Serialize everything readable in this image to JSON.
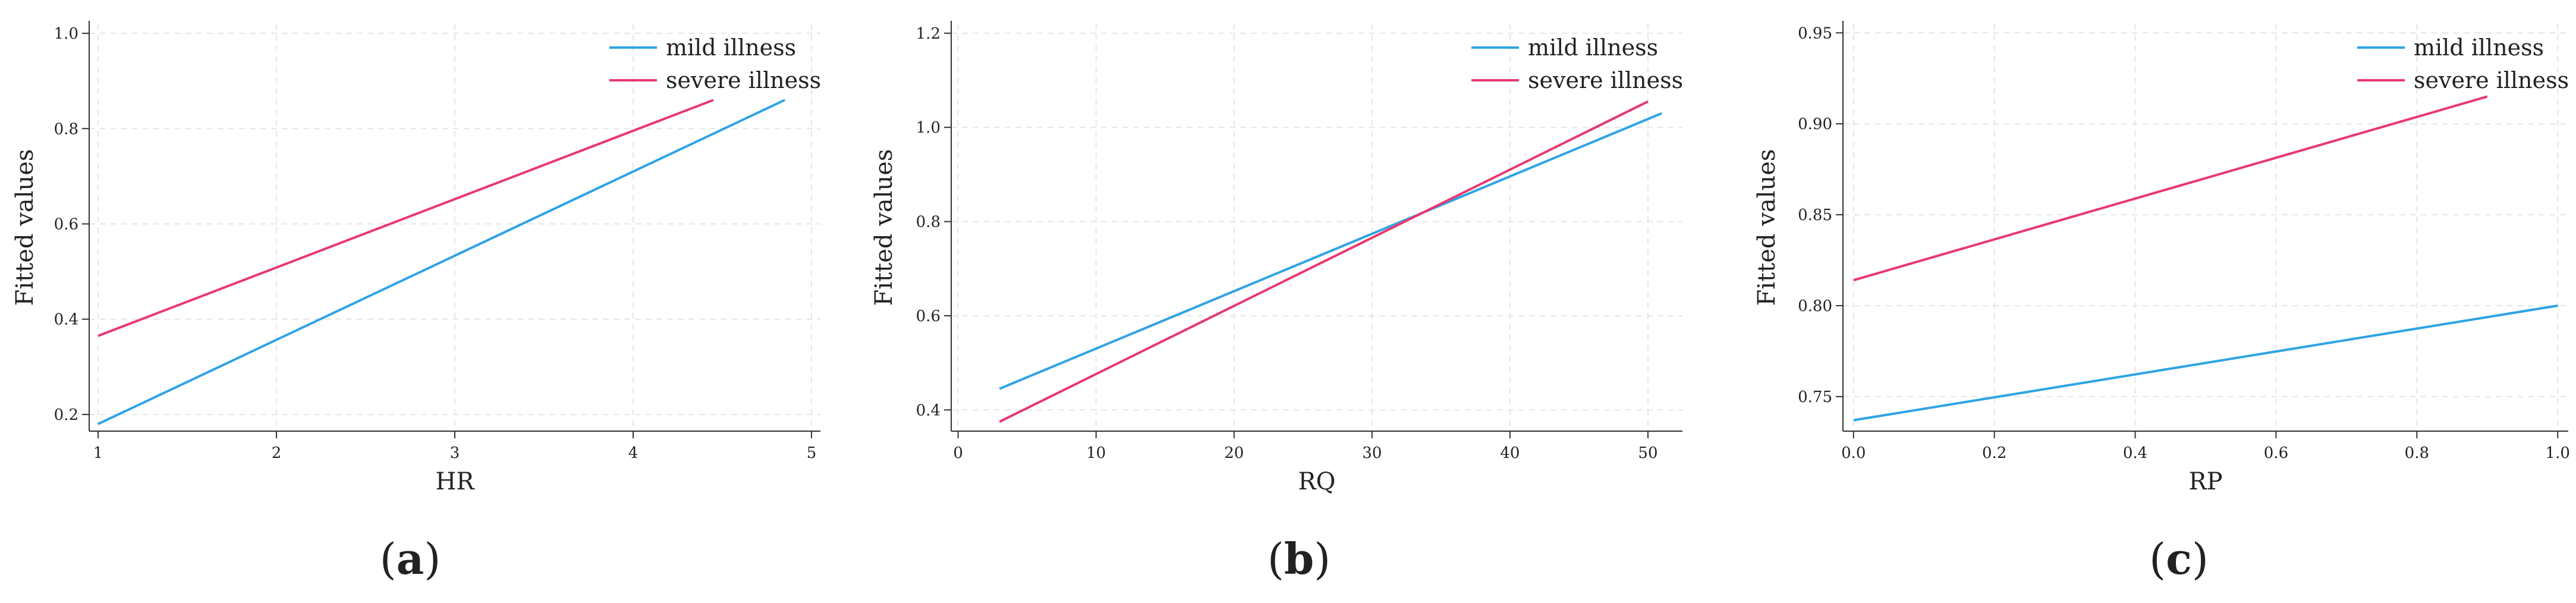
{
  "figure": {
    "panels": [
      {
        "caption": {
          "open": "(",
          "letter": "a",
          "close": ")"
        }
      },
      {
        "caption": {
          "open": "(",
          "letter": "b",
          "close": ")"
        }
      },
      {
        "caption": {
          "open": "(",
          "letter": "c",
          "close": ")"
        }
      }
    ]
  },
  "colors": {
    "mild": "#2ea3e6",
    "severe": "#e8386e",
    "axis": "#333333",
    "grid": "#e6e6e6"
  },
  "chart_data": [
    {
      "type": "line",
      "xlabel": "HR",
      "ylabel": "Fitted values",
      "xlim": [
        0.95,
        5.05
      ],
      "ylim": [
        0.165,
        1.02
      ],
      "xticks": [
        1,
        2,
        3,
        4,
        5
      ],
      "xtick_labels": [
        "1",
        "2",
        "3",
        "4",
        "5"
      ],
      "yticks": [
        0.2,
        0.4,
        0.6,
        0.8,
        1.0
      ],
      "ytick_labels": [
        "0.2",
        "0.4",
        "0.6",
        "0.8",
        "1.0"
      ],
      "grid": true,
      "legend_position": "top-right",
      "series": [
        {
          "name": "mild illness",
          "color": "#2ea3e6",
          "x": [
            1,
            4.85
          ],
          "y": [
            0.18,
            0.86
          ]
        },
        {
          "name": "severe illness",
          "color": "#e8386e",
          "x": [
            1,
            4.45
          ],
          "y": [
            0.365,
            0.86
          ]
        }
      ]
    },
    {
      "type": "line",
      "xlabel": "RQ",
      "ylabel": "Fitted values",
      "xlim": [
        -0.5,
        52.5
      ],
      "ylim": [
        0.355,
        1.22
      ],
      "xticks": [
        0,
        10,
        20,
        30,
        40,
        50
      ],
      "xtick_labels": [
        "0",
        "10",
        "20",
        "30",
        "40",
        "50"
      ],
      "yticks": [
        0.4,
        0.6,
        0.8,
        1.0,
        1.2
      ],
      "ytick_labels": [
        "0.4",
        "0.6",
        "0.8",
        "1.0",
        "1.2"
      ],
      "grid": true,
      "legend_position": "top-right",
      "series": [
        {
          "name": "mild illness",
          "color": "#2ea3e6",
          "x": [
            3,
            51
          ],
          "y": [
            0.445,
            1.03
          ]
        },
        {
          "name": "severe illness",
          "color": "#e8386e",
          "x": [
            3,
            50
          ],
          "y": [
            0.375,
            1.055
          ]
        }
      ]
    },
    {
      "type": "line",
      "xlabel": "RP",
      "ylabel": "Fitted values",
      "xlim": [
        -0.015,
        1.015
      ],
      "ylim": [
        0.731,
        0.955
      ],
      "xticks": [
        0,
        0.2,
        0.4,
        0.6,
        0.8,
        1.0
      ],
      "xtick_labels": [
        "0.0",
        "0.2",
        "0.4",
        "0.6",
        "0.8",
        "1.0"
      ],
      "yticks": [
        0.75,
        0.8,
        0.85,
        0.9,
        0.95
      ],
      "ytick_labels": [
        "0.75",
        "0.80",
        "0.85",
        "0.90",
        "0.95"
      ],
      "grid": true,
      "legend_position": "top-right",
      "series": [
        {
          "name": "mild illness",
          "color": "#2ea3e6",
          "x": [
            0,
            1
          ],
          "y": [
            0.737,
            0.8
          ]
        },
        {
          "name": "severe illness",
          "color": "#e8386e",
          "x": [
            0,
            0.9
          ],
          "y": [
            0.814,
            0.915
          ]
        }
      ]
    }
  ]
}
